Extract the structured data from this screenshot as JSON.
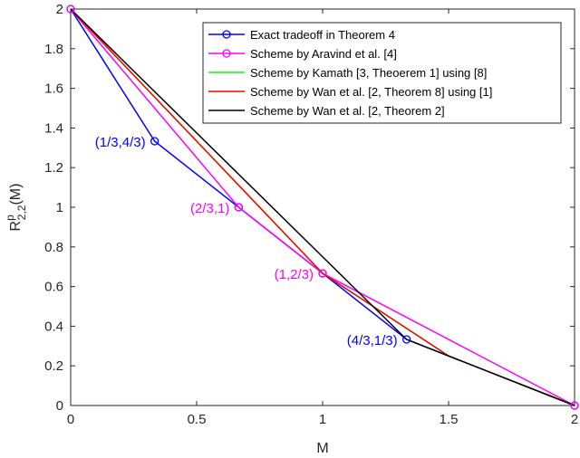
{
  "chart_data": {
    "type": "line",
    "xlabel": "M",
    "ylabel": {
      "base": "R",
      "sup": "p",
      "sub": "2,2",
      "suffix": "(M)"
    },
    "xlim": [
      0,
      2
    ],
    "ylim": [
      0,
      2
    ],
    "xticks": [
      "0",
      "0.5",
      "1",
      "1.5",
      "2"
    ],
    "yticks": [
      "0",
      "0.2",
      "0.4",
      "0.6",
      "0.8",
      "1",
      "1.2",
      "1.4",
      "1.6",
      "1.8",
      "2"
    ],
    "legend_position": "top-right",
    "series": [
      {
        "name": "Exact tradeoff in Theorem 4",
        "color": "#0000ff",
        "marker": "circle",
        "x": [
          0,
          0.3333,
          0.6667,
          1,
          1.3333,
          2
        ],
        "y": [
          2,
          1.3333,
          1,
          0.6667,
          0.3333,
          0
        ]
      },
      {
        "name": "Scheme by Aravind et al. [4]",
        "color": "#ff00ff",
        "marker": "circle",
        "x": [
          0,
          0.6667,
          1,
          2
        ],
        "y": [
          2,
          1,
          0.6667,
          0
        ]
      },
      {
        "name": "Scheme by Kamath [3, Theoerem 1] using [8]",
        "color": "#00ff00",
        "marker": "none",
        "x": [
          0,
          1,
          1.5,
          2
        ],
        "y": [
          2,
          0.6667,
          0.25,
          0
        ]
      },
      {
        "name": "Scheme by Wan et al. [2, Theorem 8] using [1]",
        "color": "#ff0000",
        "marker": "none",
        "x": [
          0,
          1,
          1.5,
          2
        ],
        "y": [
          2,
          0.6667,
          0.25,
          0
        ]
      },
      {
        "name": "Scheme by Wan et al. [2, Theorem 2]",
        "color": "#000000",
        "marker": "none",
        "x": [
          0,
          1,
          1.3333,
          2
        ],
        "y": [
          2,
          0.75,
          0.3333,
          0
        ]
      }
    ],
    "annotations": [
      {
        "text": "(1/3,4/3)",
        "x": 0.3333,
        "y": 1.3333,
        "color": "#0000ff"
      },
      {
        "text": "(2/3,1)",
        "x": 0.6667,
        "y": 1,
        "color": "#ff00ff"
      },
      {
        "text": "(1,2/3)",
        "x": 1,
        "y": 0.6667,
        "color": "#ff00ff"
      },
      {
        "text": "(4/3,1/3)",
        "x": 1.3333,
        "y": 0.3333,
        "color": "#0000ff"
      }
    ]
  }
}
